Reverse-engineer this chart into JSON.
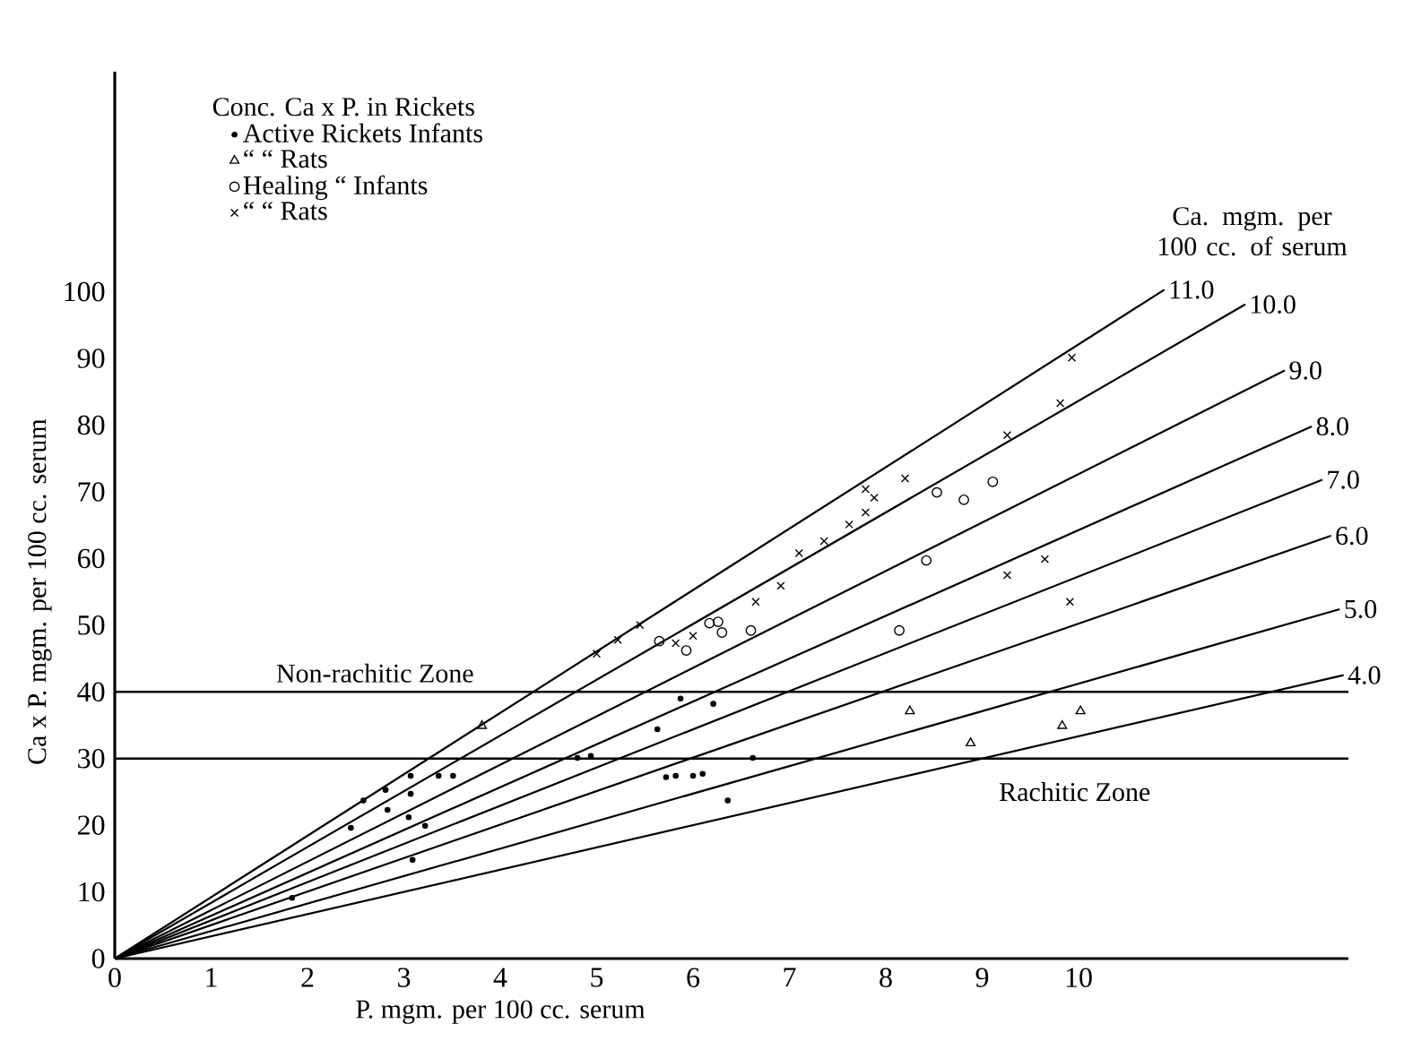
{
  "chart_data": {
    "type": "scatter",
    "xlabel": "P. mgm. per 100 cc. serum",
    "ylabel": "Ca x P. mgm. per 100 cc. serum",
    "legend_title": "Conc. Ca x P. in Rickets",
    "legend": "top left",
    "annotations": [
      "Ca. mgm. per 100 cc. of serum"
    ],
    "xlim": [
      0,
      12.8
    ],
    "ylim": [
      0,
      133
    ],
    "xticks": [
      0,
      1,
      2,
      3,
      4,
      5,
      6,
      7,
      8,
      9,
      10
    ],
    "yticks": [
      0,
      10,
      20,
      30,
      40,
      50,
      60,
      70,
      80,
      90,
      100
    ],
    "ref_lines": [
      {
        "axis": "y",
        "value": 40,
        "label": "Non-rachitic Zone"
      },
      {
        "axis": "y",
        "value": 30,
        "label": "Rachitic Zone"
      }
    ],
    "series": [
      {
        "type": "line",
        "name": "11.0",
        "color": "#000000",
        "marker": "none",
        "x": [
          0,
          10.89
        ],
        "values": [
          0,
          100.3
        ]
      },
      {
        "type": "line",
        "name": "10.0",
        "color": "#000000",
        "marker": "none",
        "x": [
          0,
          11.73
        ],
        "values": [
          0,
          98.1
        ]
      },
      {
        "type": "line",
        "name": "9.0",
        "color": "#000000",
        "marker": "none",
        "x": [
          0,
          12.14
        ],
        "values": [
          0,
          88.2
        ]
      },
      {
        "type": "line",
        "name": "8.0",
        "color": "#000000",
        "marker": "none",
        "x": [
          0,
          12.42
        ],
        "values": [
          0,
          79.8
        ]
      },
      {
        "type": "line",
        "name": "7.0",
        "color": "#000000",
        "marker": "none",
        "x": [
          0,
          12.53
        ],
        "values": [
          0,
          71.8
        ]
      },
      {
        "type": "line",
        "name": "6.0",
        "color": "#000000",
        "marker": "none",
        "x": [
          0,
          12.62
        ],
        "values": [
          0,
          63.4
        ]
      },
      {
        "type": "line",
        "name": "5.0",
        "color": "#000000",
        "marker": "none",
        "x": [
          0,
          12.71
        ],
        "values": [
          0,
          52.4
        ]
      },
      {
        "type": "line",
        "name": "4.0",
        "color": "#000000",
        "marker": "none",
        "x": [
          0,
          12.75
        ],
        "values": [
          0,
          42.5
        ]
      },
      {
        "name": "Active Rickets Infants",
        "color": "#000000",
        "marker": "dot",
        "x": [
          1.84,
          2.45,
          2.58,
          2.81,
          2.83,
          3.05,
          3.07,
          3.07,
          3.09,
          3.22,
          3.36,
          3.51,
          4.8,
          4.94,
          5.63,
          5.72,
          5.82,
          5.87,
          6.0,
          6.1,
          6.21,
          6.36,
          6.62
        ],
        "values": [
          9.1,
          19.6,
          23.7,
          25.3,
          22.3,
          21.2,
          27.4,
          24.7,
          14.8,
          19.9,
          27.4,
          27.4,
          30.1,
          30.4,
          34.4,
          27.2,
          27.4,
          39,
          27.4,
          27.7,
          38.2,
          23.7,
          30.1
        ]
      },
      {
        "name": "“        “      Rats",
        "color": "#000000",
        "marker": "triangle",
        "x": [
          3.81,
          8.25,
          8.88,
          9.83,
          10.02
        ],
        "values": [
          34.9,
          37.1,
          32.3,
          34.9,
          37.1
        ]
      },
      {
        "name": "Healing   “      Infants",
        "color": "#000000",
        "marker": "circle",
        "x": [
          5.65,
          5.93,
          6.17,
          6.26,
          6.3,
          6.6,
          8.14,
          8.42,
          8.53,
          8.81,
          9.11
        ],
        "values": [
          47.6,
          46.2,
          50.3,
          50.5,
          48.9,
          49.2,
          49.2,
          59.7,
          69.9,
          68.8,
          71.5
        ]
      },
      {
        "name": "“        “      Rats",
        "color": "#000000",
        "marker": "cross",
        "x": [
          5.0,
          5.22,
          5.45,
          5.82,
          6.0,
          6.65,
          6.91,
          7.1,
          7.36,
          7.62,
          7.79,
          7.79,
          7.88,
          8.2,
          9.26,
          9.65,
          9.91,
          9.26,
          9.81,
          9.93
        ],
        "values": [
          45.7,
          47.8,
          50.0,
          47.3,
          48.4,
          53.5,
          55.9,
          60.8,
          62.6,
          65.1,
          66.9,
          70.4,
          69.1,
          72.0,
          57.5,
          59.9,
          53.5,
          78.5,
          83.3,
          90.1
        ]
      }
    ]
  }
}
